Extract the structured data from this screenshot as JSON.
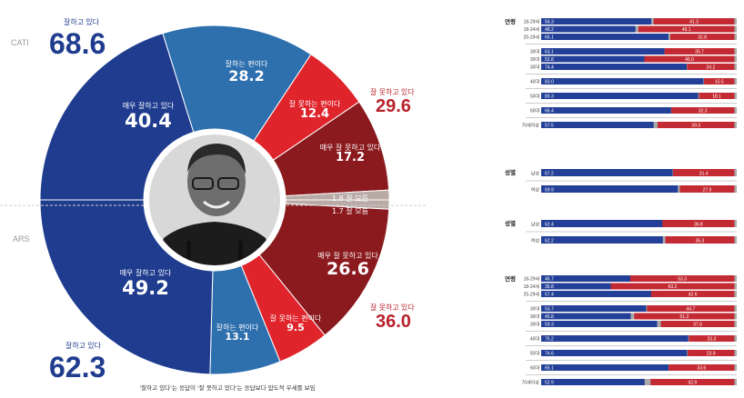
{
  "left": {
    "cati_label": "CATI",
    "ars_label": "ARS",
    "cati_total_label": "잘하고 있다",
    "cati_total_value": "68.6",
    "ars_total_label": "잘하고 있다",
    "ars_total_value": "62.3",
    "cati_neg_total_label": "잘 못하고 있다",
    "cati_neg_total_value": "29.6",
    "ars_neg_total_label": "잘 못하고 있다",
    "ars_neg_total_value": "36.0",
    "caption": "'잘하고 있다'는 응답이 '잘 못하고 있다'는 응답보다 압도적 우세를 보임"
  },
  "chart_data": [
    {
      "type": "pie",
      "name": "CATI",
      "slices": [
        {
          "label": "매우 잘하고 있다",
          "value": 40.4,
          "color": "#1f3c8f"
        },
        {
          "label": "잘하는 편이다",
          "value": 28.2,
          "color": "#2e6fae"
        },
        {
          "label": "잘 못하는 편이다",
          "value": 12.4,
          "color": "#e0242c"
        },
        {
          "label": "매우 잘 못하고 있다",
          "value": 17.2,
          "color": "#8a1a1e"
        },
        {
          "label": "잘 모름",
          "value": 1.8,
          "color": "#b9aaa5"
        }
      ]
    },
    {
      "type": "pie",
      "name": "ARS",
      "slices": [
        {
          "label": "잘 모름",
          "value": 1.7,
          "color": "#b9aaa5"
        },
        {
          "label": "매우 잘 못하고 있다",
          "value": 26.6,
          "color": "#8a1a1e"
        },
        {
          "label": "잘 못하는 편이다",
          "value": 9.5,
          "color": "#e0242c"
        },
        {
          "label": "잘하는 편이다",
          "value": 13.1,
          "color": "#2e6fae"
        },
        {
          "label": "매우 잘하고 있다",
          "value": 49.2,
          "color": "#1f3c8f"
        }
      ]
    },
    {
      "type": "bar",
      "name": "CATI 연령",
      "header": "연령",
      "groups": [
        [
          {
            "label": "18-29세",
            "pos": 56.3,
            "neg": 41.3
          },
          {
            "label": "18-24세",
            "pos": 48.2,
            "neg": 49.1
          },
          {
            "label": "25-29세",
            "pos": 65.1,
            "neg": 32.8
          }
        ],
        [
          {
            "label": "30대",
            "pos": 63.1,
            "neg": 35.7
          },
          {
            "label": "30대",
            "pos": 52.8,
            "neg": 46.0
          },
          {
            "label": "30대",
            "pos": 74.4,
            "neg": 24.2
          }
        ],
        [
          {
            "label": "40대",
            "pos": 83.0,
            "neg": 15.5
          }
        ],
        [
          {
            "label": "50대",
            "pos": 80.3,
            "neg": 18.1
          }
        ],
        [
          {
            "label": "60대",
            "pos": 66.4,
            "neg": 32.3
          }
        ],
        [
          {
            "label": "70세이상",
            "pos": 57.5,
            "neg": 39.3
          }
        ]
      ]
    },
    {
      "type": "bar",
      "name": "CATI 성별",
      "header": "성별",
      "groups": [
        [
          {
            "label": "남성",
            "pos": 67.2,
            "neg": 31.4
          }
        ],
        [
          {
            "label": "여성",
            "pos": 69.9,
            "neg": 27.9
          }
        ]
      ]
    },
    {
      "type": "bar",
      "name": "ARS 성별",
      "header": "성별",
      "groups": [
        [
          {
            "label": "남성",
            "pos": 62.4,
            "neg": 36.8
          }
        ],
        [
          {
            "label": "여성",
            "pos": 62.2,
            "neg": 35.3
          }
        ]
      ]
    },
    {
      "type": "bar",
      "name": "ARS 연령",
      "header": "연령",
      "groups": [
        [
          {
            "label": "18-29세",
            "pos": 46.7,
            "neg": 53.3
          },
          {
            "label": "18-24세",
            "pos": 36.8,
            "neg": 63.2
          },
          {
            "label": "25-29세",
            "pos": 57.4,
            "neg": 42.6
          }
        ],
        [
          {
            "label": "30대",
            "pos": 53.7,
            "neg": 44.7
          },
          {
            "label": "30대",
            "pos": 45.8,
            "neg": 51.2
          },
          {
            "label": "30대",
            "pos": 59.3,
            "neg": 37.6
          }
        ],
        [
          {
            "label": "40대",
            "pos": 75.2,
            "neg": 23.3
          }
        ],
        [
          {
            "label": "50대",
            "pos": 74.6,
            "neg": 23.9
          }
        ],
        [
          {
            "label": "60대",
            "pos": 65.1,
            "neg": 33.6
          }
        ],
        [
          {
            "label": "70세이상",
            "pos": 52.9,
            "neg": 42.9
          }
        ]
      ]
    }
  ]
}
